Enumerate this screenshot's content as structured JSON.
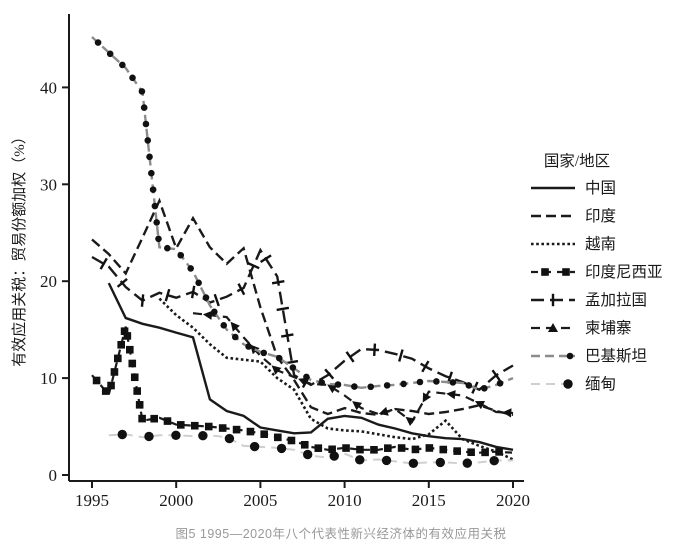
{
  "figure": {
    "caption": "图5 1995—2020年八个代表性新兴经济体的有效应用关税"
  },
  "colors": {
    "line_black": "#1a1a1a",
    "pakistan_gray": "#8c8c8c",
    "myanmar_gray": "#cfcfcf",
    "caption_gray": "#999999"
  },
  "chart_data": {
    "type": "line",
    "title": "",
    "xlabel": "",
    "ylabel": "有效应用关税：贸易份额加权（%）",
    "legend_title": "国家/地区",
    "legend_position": "right",
    "grid": false,
    "xlim": [
      1995,
      2020
    ],
    "ylim": [
      0,
      47
    ],
    "xticks": [
      1995,
      2000,
      2005,
      2010,
      2015,
      2020
    ],
    "yticks": [
      0,
      10,
      20,
      30,
      40
    ],
    "x": [
      1995,
      1996,
      1997,
      1998,
      1999,
      2000,
      2001,
      2002,
      2003,
      2004,
      2005,
      2006,
      2007,
      2008,
      2009,
      2010,
      2011,
      2012,
      2013,
      2014,
      2015,
      2016,
      2017,
      2018,
      2019,
      2020
    ],
    "series": [
      {
        "name": "中国",
        "color": "#1a1a1a",
        "dash": null,
        "width": 2.4,
        "marker": null,
        "marker_spacing": 0,
        "values": [
          null,
          19.8,
          16.2,
          15.6,
          15.2,
          14.7,
          14.2,
          7.8,
          6.6,
          6.1,
          4.9,
          4.6,
          4.3,
          4.4,
          5.8,
          6.1,
          5.9,
          5.2,
          4.8,
          4.3,
          4.0,
          3.8,
          3.7,
          3.4,
          2.9,
          2.6
        ]
      },
      {
        "name": "印度",
        "color": "#1a1a1a",
        "dash": "10,5",
        "width": 2.4,
        "marker": null,
        "marker_spacing": 0,
        "values": [
          24.3,
          22.8,
          20.8,
          24.5,
          28.3,
          23.4,
          26.5,
          23.5,
          21.8,
          23.4,
          17.3,
          12.2,
          9.8,
          7.0,
          6.3,
          6.9,
          6.4,
          6.2,
          6.8,
          6.6,
          6.3,
          6.5,
          6.8,
          7.2,
          6.6,
          6.2
        ]
      },
      {
        "name": "越南",
        "color": "#1a1a1a",
        "dash": "2.6,2.6",
        "width": 2.6,
        "marker": null,
        "marker_spacing": 0,
        "values": [
          null,
          null,
          null,
          null,
          18.2,
          16.5,
          15.2,
          13.5,
          12.1,
          11.9,
          11.7,
          10.0,
          8.8,
          5.8,
          4.8,
          4.6,
          4.5,
          4.2,
          3.9,
          3.7,
          4.2,
          5.6,
          3.7,
          3.0,
          2.4,
          1.6
        ]
      },
      {
        "name": "印度尼西亚",
        "color": "#1a1a1a",
        "dash": "7,6",
        "width": 2.2,
        "marker": "square",
        "marker_spacing": 14,
        "values": [
          10.3,
          8.3,
          15.3,
          5.6,
          5.9,
          5.2,
          5.1,
          5.0,
          4.8,
          4.6,
          4.3,
          3.9,
          3.5,
          2.9,
          2.6,
          2.8,
          2.6,
          2.6,
          2.9,
          2.6,
          2.8,
          2.6,
          2.4,
          2.3,
          2.4,
          2.3
        ]
      },
      {
        "name": "孟加拉国",
        "color": "#1a1a1a",
        "dash": "13,6",
        "width": 2.4,
        "marker": "pipe",
        "marker_spacing": 27,
        "values": [
          22.5,
          21.5,
          19.4,
          18.0,
          18.8,
          18.3,
          18.9,
          17.8,
          18.4,
          19.3,
          23.2,
          20.5,
          10.3,
          9.3,
          10.3,
          11.8,
          13.0,
          12.9,
          12.5,
          12.0,
          11.0,
          10.2,
          9.6,
          8.8,
          10.3,
          11.3
        ]
      },
      {
        "name": "柬埔寨",
        "color": "#1a1a1a",
        "dash": "9,6",
        "width": 2.2,
        "marker": "triangle",
        "marker_spacing": 30,
        "values": [
          null,
          null,
          null,
          null,
          null,
          null,
          16.7,
          16.5,
          16.3,
          14.2,
          12.3,
          10.8,
          10.1,
          9.4,
          9.3,
          8.2,
          6.9,
          6.3,
          6.8,
          5.5,
          8.6,
          8.4,
          8.2,
          7.4,
          6.5,
          6.4
        ]
      },
      {
        "name": "巴基斯坦",
        "color": "#8c8c8c",
        "dash": "9,5",
        "width": 2.4,
        "marker": "dot",
        "marker_spacing": 16.5,
        "values": [
          45.2,
          43.6,
          42.0,
          39.5,
          23.5,
          23.3,
          21.0,
          17.5,
          15.0,
          13.5,
          12.7,
          12.2,
          11.0,
          9.8,
          9.4,
          9.3,
          9.0,
          9.2,
          9.3,
          9.5,
          9.7,
          9.6,
          9.5,
          8.8,
          9.3,
          10.0
        ]
      },
      {
        "name": "缅甸",
        "color": "#cfcfcf",
        "dash": "9,6",
        "width": 2.0,
        "marker": "big-dot",
        "marker_spacing": 27,
        "values": [
          null,
          4.1,
          4.2,
          3.9,
          4.1,
          4.1,
          4.0,
          4.1,
          3.9,
          3.0,
          2.9,
          2.8,
          2.6,
          2.0,
          1.8,
          2.2,
          1.5,
          1.6,
          1.4,
          1.2,
          1.3,
          1.3,
          1.2,
          1.3,
          1.5,
          1.5
        ]
      }
    ]
  }
}
